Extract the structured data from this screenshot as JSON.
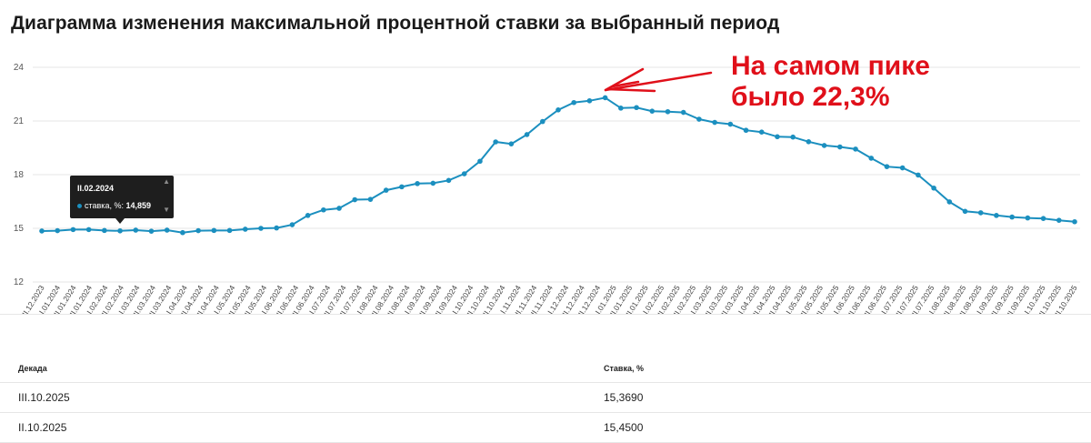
{
  "page_title": "Диаграмма изменения максимальной процентной ставки за выбранный период",
  "annotation": {
    "line1": "На самом пике",
    "line2": "было 22,3%",
    "color": "#e0101a"
  },
  "tooltip": {
    "title": "II.02.2024",
    "series_label": "ставка, %:",
    "value": "14,859",
    "up_icon": "chevron-up-icon",
    "down_icon": "chevron-down-icon"
  },
  "chart_data": {
    "type": "line",
    "line_color": "#1b8fbf",
    "y_ticks": [
      12,
      15,
      18,
      21,
      24
    ],
    "ylim": [
      12,
      24
    ],
    "grid": "horizontal",
    "categories": [
      "III.12.2023",
      "I.01.2024",
      "II.01.2024",
      "III.01.2024",
      "I.02.2024",
      "II.02.2024",
      "III.02.2024",
      "I.03.2024",
      "II.03.2024",
      "III.03.2024",
      "I.04.2024",
      "II.04.2024",
      "III.04.2024",
      "I.05.2024",
      "II.05.2024",
      "III.05.2024",
      "I.06.2024",
      "II.06.2024",
      "III.06.2024",
      "I.07.2024",
      "II.07.2024",
      "III.07.2024",
      "I.08.2024",
      "II.08.2024",
      "III.08.2024",
      "I.09.2024",
      "II.09.2024",
      "III.09.2024",
      "I.10.2024",
      "II.10.2024",
      "III.10.2024",
      "I.11.2024",
      "II.11.2024",
      "III.11.2024",
      "I.12.2024",
      "II.12.2024",
      "III.12.2024",
      "I.01.2025",
      "II.01.2025",
      "III.01.2025",
      "I.02.2025",
      "II.02.2025",
      "III.02.2025",
      "I.03.2025",
      "II.03.2025",
      "III.03.2025",
      "I.04.2025",
      "II.04.2025",
      "III.04.2025",
      "I.05.2025",
      "II.05.2025",
      "III.05.2025",
      "I.06.2025",
      "II.06.2025",
      "III.06.2025",
      "I.07.2025",
      "II.07.2025",
      "III.07.2025",
      "I.08.2025",
      "II.08.2025",
      "III.08.2025",
      "I.09.2025",
      "II.09.2025",
      "III.09.2025",
      "I.10.2025",
      "II.10.2025",
      "III.10.2025"
    ],
    "tick_labels": [
      "III.12.2023",
      "I.01.2024",
      "II.01.2024",
      "III.01.2024",
      "I.02.2024",
      "III.02.2024",
      "I.03.2024",
      "II.03.2024",
      "III.03.2024",
      "I.04.2024",
      "II.04.2024",
      "III.04.2024",
      "I.05.2024",
      "II.05.2024",
      "III.05.2024",
      "I.06.2024",
      "II.06.2024",
      "III.06.2024",
      "I.07.2024",
      "II.07.2024",
      "III.07.2024",
      "I.08.2024",
      "II.08.2024",
      "III.08.2024",
      "I.09.2024",
      "II.09.2024",
      "III.09.2024",
      "I.10.2024",
      "II.10.2024",
      "III.10.2024",
      "I.11.2024",
      "II.11.2024",
      "III.11.2024",
      "I.12.2024",
      "II.12.2024",
      "III.12.2024",
      "I.01.2025",
      "II.01.2025",
      "III.01.2025",
      "I.02.2025",
      "II.02.2025",
      "III.02.2025",
      "I.03.2025",
      "II.03.2025",
      "III.03.2025",
      "I.04.2025",
      "II.04.2025",
      "III.04.2025",
      "I.05.2025",
      "II.05.2025",
      "III.05.2025",
      "I.06.2025",
      "II.06.2025",
      "III.06.2025",
      "I.07.2025",
      "II.07.2025",
      "III.07.2025",
      "I.08.2025",
      "II.08.2025",
      "III.08.2025",
      "I.09.2025",
      "II.09.2025",
      "III.09.2025",
      "I.10.2025",
      "II.10.2025",
      "III.10.2025"
    ],
    "values": [
      14.85,
      14.87,
      14.93,
      14.93,
      14.88,
      14.859,
      14.9,
      14.84,
      14.9,
      14.76,
      14.87,
      14.88,
      14.88,
      14.95,
      15.0,
      15.02,
      15.2,
      15.72,
      16.03,
      16.12,
      16.6,
      16.62,
      17.13,
      17.32,
      17.5,
      17.52,
      17.68,
      18.05,
      18.75,
      19.83,
      19.72,
      20.24,
      20.97,
      21.62,
      22.03,
      22.13,
      22.3,
      21.72,
      21.75,
      21.55,
      21.52,
      21.48,
      21.1,
      20.92,
      20.82,
      20.48,
      20.38,
      20.12,
      20.1,
      19.84,
      19.63,
      19.55,
      19.43,
      18.92,
      18.45,
      18.38,
      17.98,
      17.25,
      16.48,
      15.95,
      15.87,
      15.72,
      15.63,
      15.58,
      15.55,
      15.45,
      15.369
    ]
  },
  "table": {
    "headers": [
      "Декада",
      "Ставка, %"
    ],
    "rows": [
      [
        "III.10.2025",
        "15,3690"
      ],
      [
        "II.10.2025",
        "15,4500"
      ]
    ]
  }
}
